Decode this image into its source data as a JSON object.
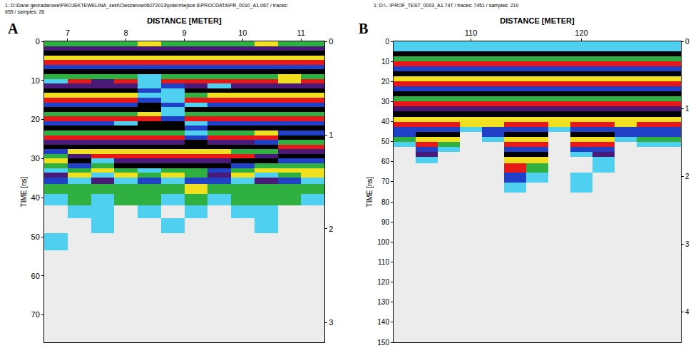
{
  "chart_data": [
    {
      "type": "heatmap",
      "panel": "A",
      "header": "1: D:\\Dane georadarowe\\PROJEKTEWELINA_zest\\Cieszanow06072013\\pole\\miejsce 6\\PROCDATA\\PR_0010_A1.06T / traces: 655 / samples: 26",
      "x_title": "DISTANCE [METER]",
      "y_title": "TIME [ns]",
      "xlim": [
        6.6,
        11.4
      ],
      "xticks": [
        7,
        8,
        9,
        10,
        11
      ],
      "ylim": [
        0,
        77
      ],
      "yticks": [
        0,
        10,
        20,
        30,
        40,
        50,
        60,
        70
      ],
      "y2lim": [
        0,
        3.21
      ],
      "y2ticks": [
        0,
        1,
        2,
        3
      ],
      "zlim": [
        -4,
        4
      ],
      "x": [
        6.8,
        7.2,
        7.6,
        8.0,
        8.4,
        8.8,
        9.2,
        9.6,
        10.0,
        10.4,
        10.8,
        11.2
      ],
      "y": [
        0.6,
        1.8,
        3.0,
        4.2,
        5.4,
        6.6,
        7.8,
        9.0,
        10.2,
        11.4,
        12.6,
        13.8,
        15.0,
        16.2,
        17.4,
        18.6,
        19.8,
        21.0,
        22.2,
        23.4,
        24.6,
        25.8,
        27.0,
        28.2,
        29.4,
        30.6,
        31.8,
        33.0,
        34.2,
        35.4,
        37.5,
        40.5,
        43.5,
        47,
        51,
        56,
        62,
        68,
        74
      ],
      "z": [
        [
          1,
          1,
          1,
          1,
          2,
          1,
          1,
          1,
          1,
          2,
          1,
          1
        ],
        [
          -3,
          -3,
          -3,
          -3,
          -3,
          -3,
          -3,
          -3,
          -3,
          -3,
          -3,
          -3
        ],
        [
          -4,
          -4,
          -4,
          -4,
          -4,
          -4,
          -4,
          -4,
          -4,
          -4,
          -4,
          -4
        ],
        [
          2,
          2,
          2,
          2,
          2,
          2,
          2,
          2,
          2,
          2,
          2,
          2
        ],
        [
          4,
          4,
          4,
          4,
          4,
          4,
          4,
          4,
          4,
          4,
          4,
          4
        ],
        [
          -2,
          -2,
          -2,
          -2,
          -2,
          -2,
          -2,
          -2,
          -2,
          -2,
          -2,
          -2
        ],
        [
          -4,
          -4,
          -4,
          -4,
          -4,
          -4,
          -4,
          -4,
          -4,
          -4,
          -4,
          -4
        ],
        [
          1,
          1,
          1,
          1,
          -1,
          1,
          1,
          1,
          1,
          1,
          2,
          1
        ],
        [
          -1,
          4,
          -3,
          4,
          -1,
          4,
          4,
          4,
          4,
          4,
          2,
          4
        ],
        [
          -3,
          -3,
          -3,
          -3,
          -1,
          -2,
          -3,
          -1,
          -3,
          -3,
          -3,
          -3
        ],
        [
          -4,
          -4,
          -4,
          -4,
          -2,
          -1,
          -4,
          -4,
          -4,
          -4,
          -4,
          -4
        ],
        [
          2,
          2,
          2,
          2,
          -1,
          -1,
          1,
          2,
          2,
          2,
          2,
          2
        ],
        [
          4,
          4,
          4,
          4,
          -2,
          -1,
          4,
          4,
          4,
          4,
          4,
          4
        ],
        [
          -2,
          -2,
          -2,
          -2,
          -4,
          -2,
          -1,
          -2,
          -2,
          -2,
          -2,
          -2
        ],
        [
          -4,
          -4,
          -4,
          -4,
          -4,
          -1,
          -4,
          -4,
          -4,
          -4,
          -4,
          -4
        ],
        [
          1,
          1,
          1,
          1,
          2,
          -1,
          1,
          1,
          1,
          1,
          1,
          1
        ],
        [
          4,
          4,
          4,
          4,
          4,
          -2,
          4,
          4,
          4,
          4,
          4,
          4
        ],
        [
          -2,
          -2,
          -2,
          -1,
          -4,
          -4,
          -1,
          -2,
          -2,
          -2,
          -2,
          -2
        ],
        [
          -4,
          -4,
          -4,
          -4,
          -4,
          -4,
          -2,
          -4,
          -4,
          -4,
          -4,
          -4
        ],
        [
          1,
          1,
          1,
          1,
          1,
          1,
          -1,
          1,
          1,
          2,
          -2,
          -2
        ],
        [
          4,
          4,
          4,
          4,
          4,
          4,
          -2,
          4,
          4,
          4,
          -4,
          -4
        ],
        [
          -3,
          -3,
          -3,
          -3,
          -3,
          -3,
          -4,
          -3,
          -3,
          -2,
          1,
          1
        ],
        [
          -4,
          -4,
          -4,
          -4,
          -4,
          -4,
          -4,
          -4,
          -4,
          -4,
          4,
          4
        ],
        [
          -2,
          2,
          2,
          2,
          2,
          2,
          2,
          2,
          1,
          1,
          -3,
          -3
        ],
        [
          1,
          -3,
          4,
          4,
          4,
          4,
          4,
          4,
          4,
          -3,
          -4,
          -4
        ],
        [
          2,
          -4,
          -1,
          -3,
          -3,
          -3,
          -3,
          -3,
          -4,
          -4,
          -2,
          -2
        ],
        [
          1,
          -2,
          1,
          -4,
          -4,
          -4,
          -4,
          -4,
          -2,
          1,
          1,
          1
        ],
        [
          -1,
          1,
          2,
          1,
          -1,
          1,
          1,
          -2,
          1,
          2,
          2,
          2
        ],
        [
          -3,
          2,
          -1,
          2,
          1,
          2,
          1,
          -3,
          2,
          -1,
          1,
          2
        ],
        [
          -2,
          -1,
          -3,
          -1,
          -2,
          -1,
          -2,
          -2,
          -1,
          -3,
          -2,
          -1
        ],
        [
          1,
          1,
          1,
          1,
          1,
          1,
          2,
          1,
          1,
          1,
          1,
          1
        ],
        [
          -1,
          1,
          -1,
          1,
          1,
          -1,
          1,
          -1,
          1,
          1,
          1,
          -1
        ],
        [
          0,
          -1,
          -1,
          0,
          -1,
          0,
          -1,
          0,
          -1,
          -1,
          0,
          0
        ],
        [
          0,
          0,
          -1,
          0,
          0,
          -1,
          0,
          0,
          0,
          -1,
          0,
          0
        ],
        [
          -1,
          0,
          0,
          0,
          0,
          0,
          0,
          0,
          0,
          0,
          0,
          0
        ],
        [
          0,
          0,
          0,
          0,
          0,
          0,
          0,
          0,
          0,
          0,
          0,
          0
        ],
        [
          0,
          0,
          0,
          0,
          0,
          0,
          0,
          0,
          0,
          0,
          0,
          0
        ],
        [
          0,
          0,
          0,
          0,
          0,
          0,
          0,
          0,
          0,
          0,
          0,
          0
        ],
        [
          0,
          0,
          0,
          0,
          0,
          0,
          0,
          0,
          0,
          0,
          0,
          0
        ]
      ]
    },
    {
      "type": "heatmap",
      "panel": "B",
      "header": "1: D:\\...\\PROF_TEST_0003_A1.74T / traces: 7451 / samples: 210",
      "x_title": "DISTANCE [METER]",
      "y_title": "TIME [ns]",
      "xlim": [
        103,
        129
      ],
      "xticks": [
        110,
        120
      ],
      "ylim": [
        0,
        150
      ],
      "yticks": [
        0,
        10,
        20,
        30,
        40,
        50,
        60,
        70,
        80,
        90,
        100,
        110,
        120,
        130,
        140,
        150
      ],
      "y2lim": [
        0,
        4.45
      ],
      "y2ticks": [
        0,
        1,
        2,
        3,
        4
      ],
      "zlim": [
        -4,
        4
      ],
      "x": [
        104,
        106,
        108,
        110,
        112,
        114,
        116,
        118,
        120,
        122,
        124,
        126,
        128
      ],
      "y": [
        1.25,
        3.75,
        6.25,
        8.75,
        11.25,
        13.75,
        16.25,
        18.75,
        21.25,
        23.75,
        26.25,
        28.75,
        31.25,
        33.75,
        36.25,
        38.75,
        41.25,
        43.75,
        46.25,
        48.75,
        51.25,
        53.75,
        56.25,
        58.75,
        63,
        68,
        73,
        78,
        85,
        95,
        105,
        115,
        125,
        135,
        145
      ],
      "z": [
        [
          -1,
          -1,
          -1,
          -1,
          -1,
          -1,
          -1,
          -1,
          -1,
          -1,
          -1,
          -1,
          -1
        ],
        [
          -1,
          -1,
          -1,
          -1,
          -1,
          -1,
          -1,
          -1,
          -1,
          -1,
          -1,
          -1,
          -1
        ],
        [
          -4,
          -4,
          -4,
          -4,
          -4,
          -4,
          -4,
          -4,
          -4,
          -4,
          -4,
          -4,
          -4
        ],
        [
          1,
          1,
          1,
          1,
          1,
          1,
          1,
          1,
          1,
          1,
          1,
          1,
          1
        ],
        [
          4,
          4,
          4,
          4,
          4,
          4,
          4,
          4,
          4,
          4,
          4,
          4,
          4
        ],
        [
          -2,
          -2,
          -2,
          -2,
          -2,
          -2,
          -2,
          -2,
          -2,
          -2,
          -2,
          -2,
          -2
        ],
        [
          -4,
          -4,
          -4,
          -4,
          -4,
          -4,
          -4,
          -4,
          -4,
          -4,
          -4,
          -4,
          -4
        ],
        [
          2,
          2,
          2,
          2,
          2,
          2,
          2,
          2,
          2,
          2,
          2,
          2,
          2
        ],
        [
          4,
          4,
          4,
          4,
          4,
          4,
          4,
          4,
          4,
          4,
          4,
          4,
          4
        ],
        [
          -2,
          -2,
          -2,
          -2,
          -2,
          -2,
          -2,
          -2,
          -2,
          -2,
          -2,
          -2,
          -2
        ],
        [
          -4,
          -4,
          -4,
          -4,
          -4,
          -4,
          -4,
          -4,
          -4,
          -4,
          -4,
          -4,
          -4
        ],
        [
          1,
          1,
          1,
          1,
          1,
          1,
          1,
          1,
          1,
          1,
          1,
          1,
          1
        ],
        [
          4,
          4,
          4,
          4,
          4,
          4,
          4,
          4,
          4,
          4,
          4,
          4,
          4
        ],
        [
          -3,
          -3,
          -3,
          -3,
          -3,
          -3,
          -3,
          -3,
          -3,
          -3,
          -3,
          -3,
          -3
        ],
        [
          -4,
          -4,
          -4,
          -4,
          -4,
          -4,
          -4,
          -4,
          -4,
          -4,
          -4,
          -4,
          -4
        ],
        [
          2,
          2,
          2,
          2,
          2,
          2,
          2,
          2,
          2,
          2,
          2,
          2,
          2
        ],
        [
          4,
          4,
          4,
          2,
          2,
          4,
          4,
          2,
          4,
          4,
          2,
          4,
          4
        ],
        [
          -2,
          -2,
          -2,
          -1,
          -2,
          -2,
          -2,
          -1,
          -2,
          -2,
          -2,
          -2,
          -2
        ],
        [
          -2,
          -4,
          -4,
          0,
          -2,
          -4,
          -4,
          0,
          -4,
          -4,
          -2,
          -2,
          -2
        ],
        [
          1,
          2,
          2,
          0,
          -1,
          2,
          2,
          0,
          2,
          2,
          -1,
          1,
          1
        ],
        [
          -1,
          4,
          1,
          0,
          0,
          4,
          4,
          0,
          4,
          4,
          0,
          -1,
          -1
        ],
        [
          0,
          -2,
          -1,
          0,
          0,
          -2,
          -2,
          0,
          -2,
          -2,
          0,
          0,
          0
        ],
        [
          0,
          -3,
          0,
          0,
          0,
          -4,
          -4,
          0,
          -1,
          -3,
          0,
          0,
          0
        ],
        [
          0,
          -1,
          0,
          0,
          0,
          2,
          2,
          0,
          0,
          -1,
          0,
          0,
          0
        ],
        [
          0,
          0,
          0,
          0,
          0,
          4,
          1,
          0,
          0,
          -1,
          0,
          0,
          0
        ],
        [
          0,
          0,
          0,
          0,
          0,
          -2,
          -1,
          0,
          -1,
          0,
          0,
          0,
          0
        ],
        [
          0,
          0,
          0,
          0,
          0,
          -1,
          0,
          0,
          -1,
          0,
          0,
          0,
          0
        ],
        [
          0,
          0,
          0,
          0,
          0,
          0,
          0,
          0,
          0,
          0,
          0,
          0,
          0
        ],
        [
          0,
          0,
          0,
          0,
          0,
          0,
          0,
          0,
          0,
          0,
          0,
          0,
          0
        ],
        [
          0,
          0,
          0,
          0,
          0,
          0,
          0,
          0,
          0,
          0,
          0,
          0,
          0
        ],
        [
          0,
          0,
          0,
          0,
          0,
          0,
          0,
          0,
          0,
          0,
          0,
          0,
          0
        ],
        [
          0,
          0,
          0,
          0,
          0,
          0,
          0,
          0,
          0,
          0,
          0,
          0,
          0
        ],
        [
          0,
          0,
          0,
          0,
          0,
          0,
          0,
          0,
          0,
          0,
          0,
          0,
          0
        ],
        [
          0,
          0,
          0,
          0,
          0,
          0,
          0,
          0,
          0,
          0,
          0,
          0,
          0
        ],
        [
          0,
          0,
          0,
          0,
          0,
          0,
          0,
          0,
          0,
          0,
          0,
          0,
          0
        ]
      ]
    }
  ]
}
